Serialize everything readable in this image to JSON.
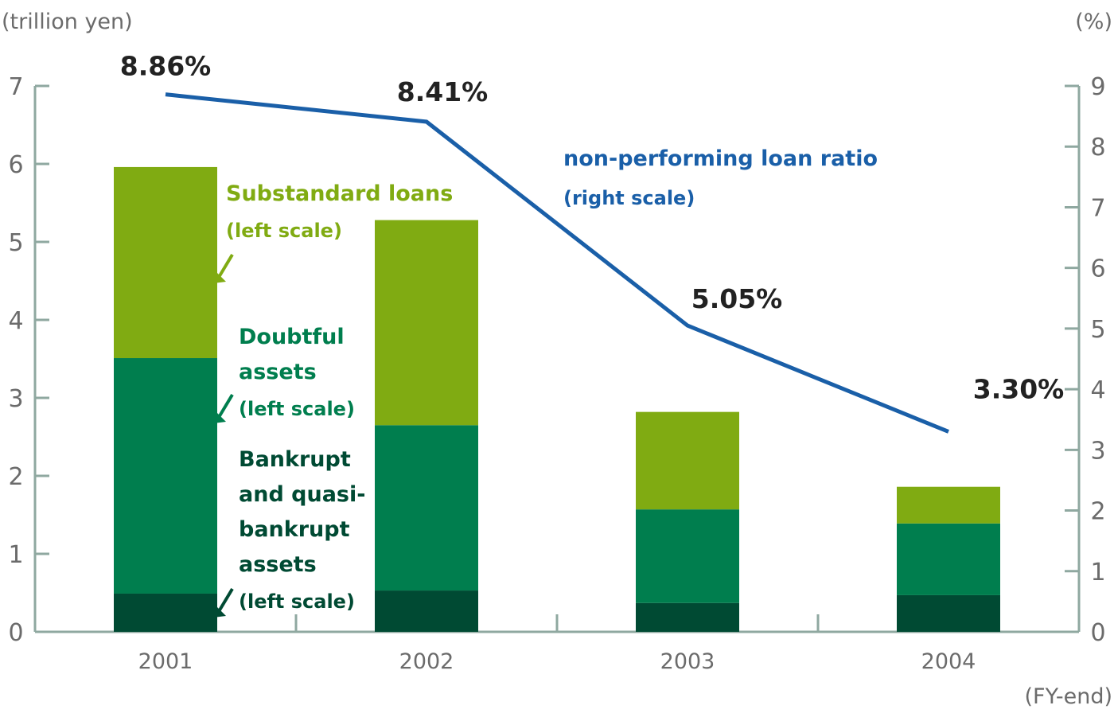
{
  "chart_data": {
    "type": "bar",
    "stacked": true,
    "categories": [
      "2001",
      "2002",
      "2003",
      "2004"
    ],
    "series": [
      {
        "name": "Bankrupt and quasi-bankrupt assets",
        "values": [
          0.49,
          0.53,
          0.37,
          0.47
        ],
        "color": "#004a33"
      },
      {
        "name": "Doubtful assets",
        "values": [
          3.02,
          2.12,
          1.2,
          0.92
        ],
        "color": "#007e4e"
      },
      {
        "name": "Substandard loans",
        "values": [
          2.45,
          2.63,
          1.25,
          0.47
        ],
        "color": "#80ab12"
      }
    ],
    "line_series": {
      "name": "non-performing loan ratio",
      "values": [
        8.86,
        8.41,
        5.05,
        3.3
      ],
      "labels": [
        "8.86%",
        "8.41%",
        "5.05%",
        "3.30%"
      ],
      "color": "#1a5fa8",
      "axis": "right"
    },
    "left_axis": {
      "unit": "(trillion yen)",
      "range": [
        0,
        7
      ],
      "ticks": [
        "0",
        "1",
        "2",
        "3",
        "4",
        "5",
        "6",
        "7"
      ]
    },
    "right_axis": {
      "unit": "(%)",
      "range": [
        0,
        9
      ],
      "ticks": [
        "0",
        "1",
        "2",
        "3",
        "4",
        "5",
        "6",
        "7",
        "8",
        "9"
      ]
    },
    "xlabel": "(FY-end)",
    "axis_color": "#8fa8a0",
    "grid": false
  },
  "annotations": {
    "substandard": {
      "lines": [
        "Substandard loans"
      ],
      "sub": "(left scale)",
      "color": "#80ab12"
    },
    "doubtful": {
      "lines": [
        "Doubtful",
        "assets"
      ],
      "sub": "(left scale)",
      "color": "#007e4e"
    },
    "bankrupt": {
      "lines": [
        "Bankrupt",
        "and quasi-",
        "bankrupt",
        "assets"
      ],
      "sub": "(left scale)",
      "color": "#004a33"
    },
    "ratio": {
      "lines": [
        "non-performing loan ratio"
      ],
      "sub": "(right scale)",
      "color": "#1a5fa8"
    }
  }
}
